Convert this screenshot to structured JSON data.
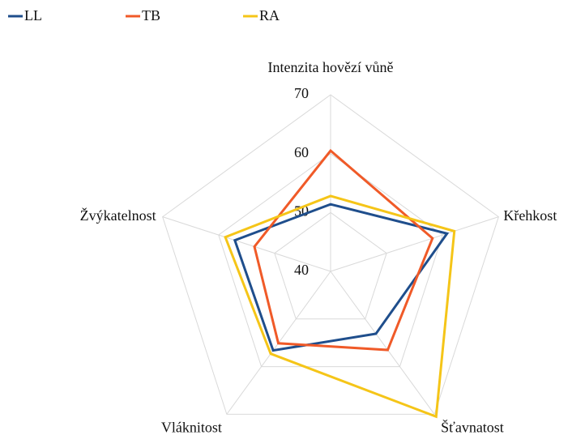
{
  "chart_data": {
    "type": "radar",
    "categories": [
      "Intenzita hovězí vůně",
      "Křehkost",
      "Šťavnatost",
      "Vláknitost",
      "Žvýkatelnost"
    ],
    "series": [
      {
        "name": "LL",
        "color": "#1f4e8c",
        "values": [
          51.4,
          60.8,
          53.1,
          56.6,
          57.1
        ]
      },
      {
        "name": "TB",
        "color": "#f05a28",
        "values": [
          60.5,
          58.2,
          56.5,
          55.1,
          53.6
        ]
      },
      {
        "name": "RA",
        "color": "#f5c518",
        "values": [
          52.8,
          62.1,
          70.5,
          57.3,
          58.8
        ]
      }
    ],
    "ylim": [
      40,
      70
    ],
    "yticks": [
      40,
      50,
      60,
      70
    ],
    "grid": true,
    "legend": "top-left"
  }
}
